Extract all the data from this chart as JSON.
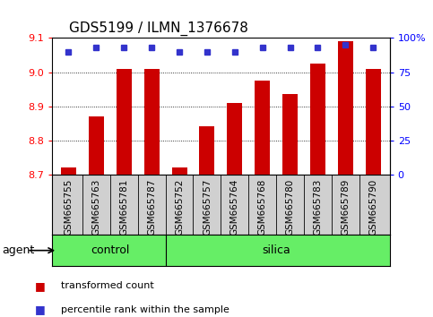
{
  "title": "GDS5199 / ILMN_1376678",
  "samples": [
    "GSM665755",
    "GSM665763",
    "GSM665781",
    "GSM665787",
    "GSM665752",
    "GSM665757",
    "GSM665764",
    "GSM665768",
    "GSM665780",
    "GSM665783",
    "GSM665789",
    "GSM665790"
  ],
  "transformed_count": [
    8.72,
    8.87,
    9.01,
    9.01,
    8.72,
    8.84,
    8.91,
    8.975,
    8.935,
    9.025,
    9.09,
    9.01
  ],
  "percentile_rank": [
    90,
    93,
    93,
    93,
    90,
    90,
    90,
    93,
    93,
    93,
    95,
    93
  ],
  "control_count": 4,
  "silica_count": 8,
  "group_label": "agent",
  "ylim": [
    8.7,
    9.1
  ],
  "yticks": [
    8.7,
    8.8,
    8.9,
    9.0,
    9.1
  ],
  "right_yticks": [
    0,
    25,
    50,
    75,
    100
  ],
  "bar_color": "#cc0000",
  "dot_color": "#3333cc",
  "tick_area_color": "#d0d0d0",
  "group_color": "#66ee66",
  "legend_red_label": "transformed count",
  "legend_blue_label": "percentile rank within the sample",
  "title_fontsize": 11,
  "axis_fontsize": 8,
  "tick_label_fontsize": 7.5,
  "group_fontsize": 9,
  "legend_fontsize": 8
}
